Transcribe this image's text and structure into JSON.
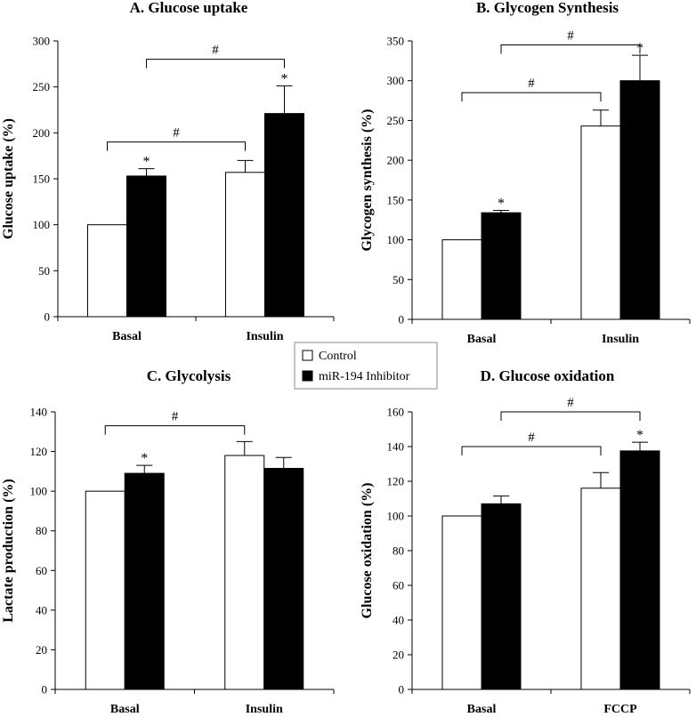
{
  "legend": {
    "control": "Control",
    "inhibitor": "miR-194 Inhibitor"
  },
  "colors": {
    "control": "#ffffff",
    "inhibitor": "#000000",
    "axis": "#000000"
  },
  "chart_data": [
    {
      "type": "bar",
      "title": "A. Glucose uptake",
      "ylabel": "Glucose uptake (%)",
      "xlabel": "",
      "categories": [
        "Basal",
        "Insulin"
      ],
      "ylim": [
        0,
        300
      ],
      "yticks": [
        0,
        50,
        100,
        150,
        200,
        250,
        300
      ],
      "series": [
        {
          "name": "Control",
          "values": [
            100,
            157
          ],
          "errors": [
            0,
            13
          ]
        },
        {
          "name": "miR-194 Inhibitor",
          "values": [
            153,
            221
          ],
          "errors": [
            8,
            30
          ]
        }
      ],
      "stars": [
        {
          "category": 0,
          "series": 1,
          "label": "*"
        },
        {
          "category": 1,
          "series": 1,
          "label": "*"
        }
      ],
      "brackets": [
        {
          "from": [
            0,
            0
          ],
          "to": [
            1,
            0
          ],
          "y": 190,
          "label": "#"
        },
        {
          "from": [
            0,
            1
          ],
          "to": [
            1,
            1
          ],
          "y": 280,
          "label": "#"
        }
      ]
    },
    {
      "type": "bar",
      "title": "B. Glycogen Synthesis",
      "ylabel": "Glycogen synthesis (%)",
      "xlabel": "",
      "categories": [
        "Basal",
        "Insulin"
      ],
      "ylim": [
        0,
        350
      ],
      "yticks": [
        0,
        50,
        100,
        150,
        200,
        250,
        300,
        350
      ],
      "series": [
        {
          "name": "Control",
          "values": [
            100,
            243
          ],
          "errors": [
            0,
            20
          ]
        },
        {
          "name": "miR-194 Inhibitor",
          "values": [
            134,
            300
          ],
          "errors": [
            3,
            32
          ]
        }
      ],
      "stars": [
        {
          "category": 0,
          "series": 1,
          "label": "*"
        },
        {
          "category": 1,
          "series": 1,
          "label": "*"
        }
      ],
      "brackets": [
        {
          "from": [
            0,
            0
          ],
          "to": [
            1,
            0
          ],
          "y": 285,
          "label": "#"
        },
        {
          "from": [
            0,
            1
          ],
          "to": [
            1,
            1
          ],
          "y": 345,
          "label": "#"
        }
      ]
    },
    {
      "type": "bar",
      "title": "C. Glycolysis",
      "ylabel": "Lactate production (%)",
      "xlabel": "",
      "categories": [
        "Basal",
        "Insulin"
      ],
      "ylim": [
        0,
        140
      ],
      "yticks": [
        0,
        20,
        40,
        60,
        80,
        100,
        120,
        140
      ],
      "series": [
        {
          "name": "Control",
          "values": [
            100,
            118
          ],
          "errors": [
            0,
            7
          ]
        },
        {
          "name": "miR-194 Inhibitor",
          "values": [
            109,
            111.5
          ],
          "errors": [
            4,
            5.5
          ]
        }
      ],
      "stars": [
        {
          "category": 0,
          "series": 1,
          "label": "*"
        }
      ],
      "brackets": [
        {
          "from": [
            0,
            0
          ],
          "to": [
            1,
            0
          ],
          "y": 133,
          "label": "#"
        }
      ]
    },
    {
      "type": "bar",
      "title": "D. Glucose oxidation",
      "ylabel": "Glucose oxidation (%)",
      "xlabel": "",
      "categories": [
        "Basal",
        "FCCP"
      ],
      "ylim": [
        0,
        160
      ],
      "yticks": [
        0,
        20,
        40,
        60,
        80,
        100,
        120,
        140,
        160
      ],
      "series": [
        {
          "name": "Control",
          "values": [
            100,
            116
          ],
          "errors": [
            0,
            9
          ]
        },
        {
          "name": "miR-194 Inhibitor",
          "values": [
            107,
            137.5
          ],
          "errors": [
            4.5,
            5
          ]
        }
      ],
      "stars": [
        {
          "category": 1,
          "series": 1,
          "label": "*"
        }
      ],
      "brackets": [
        {
          "from": [
            0,
            0
          ],
          "to": [
            1,
            0
          ],
          "y": 140,
          "label": "#"
        },
        {
          "from": [
            0,
            1
          ],
          "to": [
            1,
            1
          ],
          "y": 160,
          "label": "#"
        }
      ]
    }
  ]
}
